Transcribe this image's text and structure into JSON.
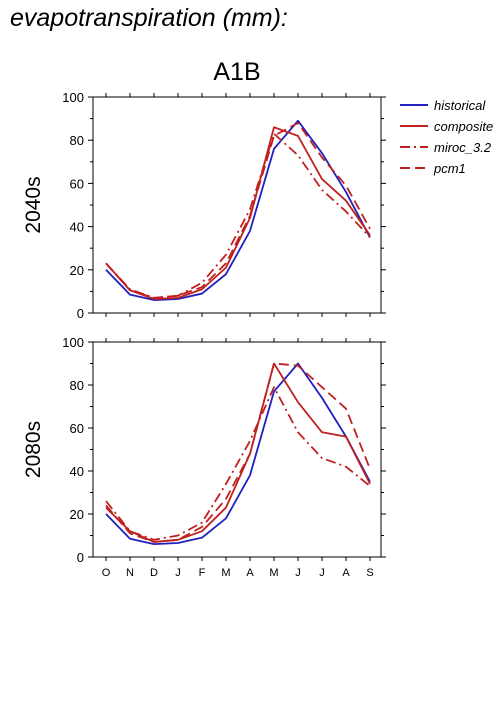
{
  "page": {
    "title": "evapotranspiration (mm):"
  },
  "chart_data": {
    "type": "line",
    "scenario": "A1B",
    "categories": [
      "O",
      "N",
      "D",
      "J",
      "F",
      "M",
      "A",
      "M",
      "J",
      "J",
      "A",
      "S"
    ],
    "ylim": [
      0,
      100
    ],
    "yticks": [
      0,
      20,
      40,
      60,
      80,
      100
    ],
    "legend": {
      "placement": "right"
    },
    "series_styles": [
      {
        "name": "historical",
        "color": "#2020c0",
        "dash": ""
      },
      {
        "name": "composite",
        "color": "#c02020",
        "dash": ""
      },
      {
        "name": "miroc_3.2",
        "color": "#c02020",
        "dash": "dashdot"
      },
      {
        "name": "pcm1",
        "color": "#c02020",
        "dash": "dash"
      }
    ],
    "panels": [
      {
        "label": "2040s",
        "series": [
          {
            "name": "historical",
            "values": [
              20,
              8.5,
              6,
              6.5,
              9,
              18,
              38,
              76,
              89,
              74,
              56,
              35
            ]
          },
          {
            "name": "composite",
            "values": [
              23,
              10.5,
              6.5,
              7,
              11,
              21,
              44,
              86,
              82,
              62,
              52,
              36
            ]
          },
          {
            "name": "miroc_3.2",
            "values": [
              23,
              11,
              7,
              8,
              14,
              27,
              48,
              83,
              73,
              57,
              47,
              35
            ]
          },
          {
            "name": "pcm1",
            "values": [
              23,
              10.5,
              7,
              8,
              12,
              23,
              45,
              82,
              88,
              72,
              59,
              39
            ]
          }
        ]
      },
      {
        "label": "2080s",
        "series": [
          {
            "name": "historical",
            "values": [
              20,
              8.5,
              6,
              6.5,
              9,
              18,
              38,
              77,
              90,
              74,
              56,
              35
            ]
          },
          {
            "name": "composite",
            "values": [
              23,
              12,
              7,
              8,
              12,
              23,
              48,
              90,
              72,
              58,
              56,
              34
            ]
          },
          {
            "name": "miroc_3.2",
            "values": [
              26,
              12,
              8,
              10,
              16,
              34,
              54,
              79,
              58,
              46,
              42,
              33
            ]
          },
          {
            "name": "pcm1",
            "values": [
              24,
              11,
              7,
              8,
              14,
              27,
              48,
              90,
              89,
              79,
              69,
              41
            ]
          }
        ]
      }
    ]
  }
}
